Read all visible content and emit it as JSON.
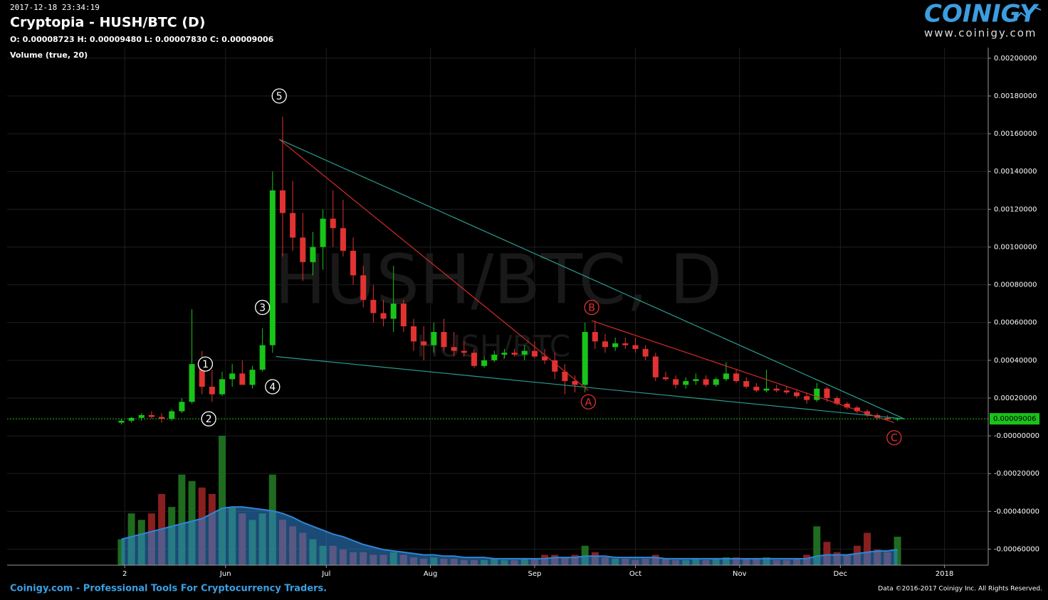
{
  "chart_data": {
    "type": "candlestick",
    "timestamp": "2017-12-18 23:34:19",
    "title": "Cryptopia - HUSH/BTC (D)",
    "ohlc_label": "O: 0.00008723 H: 0.00009480 L: 0.00007830 C: 0.00009006",
    "indicator_label": "Volume (true, 20)",
    "watermark": "HUSH/BTC, D",
    "watermark_small": "HUSH/BTC",
    "x": [
      "2017-05-01",
      "2017-05-04",
      "2017-05-07",
      "2017-05-10",
      "2017-05-13",
      "2017-05-16",
      "2017-05-19",
      "2017-05-22",
      "2017-05-25",
      "2017-05-28",
      "2017-05-31",
      "2017-06-03",
      "2017-06-06",
      "2017-06-09",
      "2017-06-12",
      "2017-06-15",
      "2017-06-18",
      "2017-06-21",
      "2017-06-24",
      "2017-06-27",
      "2017-06-30",
      "2017-07-03",
      "2017-07-06",
      "2017-07-09",
      "2017-07-12",
      "2017-07-15",
      "2017-07-18",
      "2017-07-21",
      "2017-07-24",
      "2017-07-27",
      "2017-07-30",
      "2017-08-02",
      "2017-08-05",
      "2017-08-08",
      "2017-08-11",
      "2017-08-14",
      "2017-08-17",
      "2017-08-20",
      "2017-08-23",
      "2017-08-26",
      "2017-08-29",
      "2017-09-01",
      "2017-09-04",
      "2017-09-07",
      "2017-09-10",
      "2017-09-13",
      "2017-09-16",
      "2017-09-19",
      "2017-09-22",
      "2017-09-25",
      "2017-09-28",
      "2017-10-01",
      "2017-10-04",
      "2017-10-07",
      "2017-10-10",
      "2017-10-13",
      "2017-10-16",
      "2017-10-19",
      "2017-10-22",
      "2017-10-25",
      "2017-10-28",
      "2017-10-31",
      "2017-11-03",
      "2017-11-06",
      "2017-11-09",
      "2017-11-12",
      "2017-11-15",
      "2017-11-18",
      "2017-11-21",
      "2017-11-24",
      "2017-11-27",
      "2017-11-30",
      "2017-12-03",
      "2017-12-06",
      "2017-12-09",
      "2017-12-12",
      "2017-12-15",
      "2017-12-18"
    ],
    "open": [
      7e-05,
      8e-05,
      9.5e-05,
      0.00011,
      0.0001,
      9e-05,
      0.00013,
      0.00018,
      0.00038,
      0.00026,
      0.00022,
      0.0003,
      0.00033,
      0.00027,
      0.00035,
      0.00048,
      0.0013,
      0.00118,
      0.00105,
      0.00092,
      0.001,
      0.00115,
      0.0011,
      0.00098,
      0.00085,
      0.00072,
      0.00065,
      0.00062,
      0.0007,
      0.00058,
      0.0005,
      0.00048,
      0.00055,
      0.00047,
      0.00045,
      0.00044,
      0.00037,
      0.0004,
      0.00043,
      0.00044,
      0.00043,
      0.00045,
      0.00042,
      0.0004,
      0.00034,
      0.00029,
      0.00027,
      0.00055,
      0.0005,
      0.00047,
      0.00049,
      0.00048,
      0.00046,
      0.00042,
      0.00031,
      0.0003,
      0.00027,
      0.00029,
      0.0003,
      0.00027,
      0.0003,
      0.00033,
      0.00029,
      0.00026,
      0.00024,
      0.00025,
      0.00024,
      0.00023,
      0.00021,
      0.00019,
      0.00025,
      0.0002,
      0.00017,
      0.00015,
      0.00013,
      0.00011,
      9.5e-05,
      8.723e-05
    ],
    "high": [
      9e-05,
      0.0001,
      0.00012,
      0.00013,
      0.00012,
      0.00014,
      0.0002,
      0.00067,
      0.00045,
      0.00035,
      0.00034,
      0.00038,
      0.0004,
      0.00037,
      0.00057,
      0.0014,
      0.00169,
      0.00135,
      0.00118,
      0.00108,
      0.0012,
      0.0013,
      0.00125,
      0.00105,
      0.0009,
      0.0008,
      0.00072,
      0.0009,
      0.00072,
      0.00062,
      0.00058,
      0.0006,
      0.00062,
      0.00055,
      0.0005,
      0.00046,
      0.00042,
      0.00045,
      0.00046,
      0.00046,
      0.00048,
      0.0005,
      0.00046,
      0.00044,
      0.00038,
      0.00032,
      0.0006,
      0.00061,
      0.00054,
      0.00052,
      0.00052,
      0.00052,
      0.00048,
      0.00044,
      0.00034,
      0.00032,
      0.00031,
      0.00033,
      0.00032,
      0.00031,
      0.00039,
      0.00035,
      0.00031,
      0.00028,
      0.00035,
      0.00027,
      0.00026,
      0.00024,
      0.00023,
      0.00028,
      0.00026,
      0.00021,
      0.00018,
      0.00016,
      0.00014,
      0.00012,
      0.00011,
      9.48e-05
    ],
    "low": [
      6e-05,
      7e-05,
      8e-05,
      9e-05,
      7e-05,
      8e-05,
      0.00012,
      0.00017,
      0.00022,
      0.00018,
      0.00021,
      0.00026,
      0.00028,
      0.00025,
      0.00034,
      0.00044,
      0.00095,
      0.00098,
      0.00082,
      0.00085,
      0.00088,
      0.001,
      0.00095,
      0.0008,
      0.00068,
      0.0006,
      0.00058,
      0.00055,
      0.00055,
      0.00045,
      0.0004,
      0.00044,
      0.00045,
      0.00042,
      0.00042,
      0.00036,
      0.00036,
      0.00039,
      0.00041,
      0.00042,
      0.0004,
      0.00041,
      0.00038,
      0.0003,
      0.00022,
      0.00023,
      0.00023,
      0.00046,
      0.00044,
      0.00045,
      0.00046,
      0.00044,
      0.0004,
      0.00029,
      0.00029,
      0.00025,
      0.00025,
      0.00027,
      0.00026,
      0.00026,
      0.00029,
      0.00028,
      0.00025,
      0.00023,
      0.00023,
      0.00023,
      0.00022,
      0.0002,
      0.00017,
      0.00018,
      0.00018,
      0.00016,
      0.00014,
      0.00012,
      0.0001,
      8.5e-05,
      8e-05,
      7.83e-05
    ],
    "close": [
      8e-05,
      9.5e-05,
      0.00011,
      0.0001,
      9e-05,
      0.00013,
      0.00018,
      0.00038,
      0.00026,
      0.00022,
      0.0003,
      0.00033,
      0.00027,
      0.00035,
      0.00048,
      0.0013,
      0.00118,
      0.00105,
      0.00092,
      0.001,
      0.00115,
      0.0011,
      0.00098,
      0.00085,
      0.00072,
      0.00065,
      0.00062,
      0.0007,
      0.00058,
      0.0005,
      0.00048,
      0.00055,
      0.00047,
      0.00045,
      0.00044,
      0.00037,
      0.0004,
      0.00043,
      0.00044,
      0.00043,
      0.00045,
      0.00042,
      0.0004,
      0.00034,
      0.00029,
      0.00027,
      0.00055,
      0.0005,
      0.00047,
      0.00049,
      0.00048,
      0.00046,
      0.00042,
      0.00031,
      0.0003,
      0.00027,
      0.00029,
      0.0003,
      0.00027,
      0.0003,
      0.00033,
      0.00029,
      0.00026,
      0.00024,
      0.00025,
      0.00024,
      0.00023,
      0.00021,
      0.00019,
      0.00025,
      0.0002,
      0.00017,
      0.00015,
      0.00013,
      0.00011,
      9.5e-05,
      8.7e-05,
      9.006e-05
    ],
    "up_color": "#19c419",
    "down_color": "#e23232",
    "volume": {
      "values": [
        20,
        40,
        35,
        40,
        55,
        45,
        70,
        65,
        60,
        55,
        100,
        45,
        40,
        35,
        40,
        70,
        35,
        30,
        25,
        20,
        15,
        15,
        12,
        10,
        10,
        8,
        8,
        10,
        8,
        6,
        5,
        6,
        5,
        5,
        4,
        4,
        4,
        5,
        4,
        4,
        5,
        5,
        8,
        8,
        6,
        8,
        15,
        10,
        6,
        5,
        5,
        4,
        5,
        8,
        5,
        4,
        4,
        5,
        4,
        5,
        6,
        6,
        5,
        5,
        6,
        4,
        4,
        5,
        8,
        30,
        18,
        10,
        8,
        15,
        25,
        12,
        10,
        22
      ],
      "up_color": "#1f6b1f",
      "down_color": "#8a1f1f",
      "ma": {
        "values": [
          20,
          22,
          24,
          26,
          28,
          30,
          32,
          34,
          36,
          40,
          44,
          45,
          45,
          44,
          43,
          42,
          40,
          37,
          33,
          30,
          27,
          24,
          22,
          19,
          16,
          14,
          12,
          11,
          10,
          9,
          8,
          8,
          7,
          7,
          6,
          6,
          6,
          5,
          5,
          5,
          5,
          5,
          5,
          6,
          6,
          6,
          7,
          7,
          7,
          6,
          6,
          6,
          6,
          6,
          5,
          5,
          5,
          5,
          5,
          5,
          5,
          5,
          5,
          5,
          5,
          5,
          5,
          5,
          5,
          7,
          8,
          8,
          8,
          9,
          10,
          11,
          11,
          12
        ],
        "color": "#2f86d6"
      }
    },
    "y2lim": [
      0,
      400
    ],
    "xlim": [
      "2017-03-28",
      "2018-01-14"
    ],
    "xticks": [
      {
        "value": "2017-05-02",
        "label": "2"
      },
      {
        "value": "2017-06-01",
        "label": "Jun"
      },
      {
        "value": "2017-07-01",
        "label": "Jul"
      },
      {
        "value": "2017-08-01",
        "label": "Aug"
      },
      {
        "value": "2017-09-01",
        "label": "Sep"
      },
      {
        "value": "2017-10-01",
        "label": "Oct"
      },
      {
        "value": "2017-11-01",
        "label": "Nov"
      },
      {
        "value": "2017-12-01",
        "label": "Dec"
      },
      {
        "value": "2018-01-01",
        "label": "2018"
      }
    ],
    "ylim": [
      -0.000685,
      0.002056
    ],
    "yticks": [
      {
        "value": 0.002,
        "label": "0.00200000"
      },
      {
        "value": 0.0018,
        "label": "0.00180000"
      },
      {
        "value": 0.0016,
        "label": "0.00160000"
      },
      {
        "value": 0.0014,
        "label": "0.00140000"
      },
      {
        "value": 0.0012,
        "label": "0.00120000"
      },
      {
        "value": 0.001,
        "label": "0.00100000"
      },
      {
        "value": 0.0008,
        "label": "0.00080000"
      },
      {
        "value": 0.0006,
        "label": "0.00060000"
      },
      {
        "value": 0.0004,
        "label": "0.00040000"
      },
      {
        "value": 0.0002,
        "label": "0.00020000"
      },
      {
        "value": 0,
        "label": "-0.00000000"
      },
      {
        "value": -0.0002,
        "label": "-0.00020000"
      },
      {
        "value": -0.0004,
        "label": "-0.00040000"
      },
      {
        "value": -0.0006,
        "label": "-0.00060000"
      }
    ],
    "grid": true,
    "last_price_color": "#19c419",
    "annotations": [
      {
        "text": "1",
        "x": "2017-05-26",
        "y": 0.00038,
        "color": "#ffffff"
      },
      {
        "text": "2",
        "x": "2017-05-27",
        "y": 9e-05,
        "color": "#ffffff"
      },
      {
        "text": "3",
        "x": "2017-06-12",
        "y": 0.00068,
        "color": "#ffffff"
      },
      {
        "text": "4",
        "x": "2017-06-15",
        "y": 0.00026,
        "color": "#ffffff"
      },
      {
        "text": "5",
        "x": "2017-06-17",
        "y": 0.0018,
        "color": "#ffffff"
      },
      {
        "text": "A",
        "x": "2017-09-17",
        "y": 0.00018,
        "color": "#e23232"
      },
      {
        "text": "B",
        "x": "2017-09-18",
        "y": 0.00068,
        "color": "#e23232"
      },
      {
        "text": "C",
        "x": "2017-12-17",
        "y": -1e-05,
        "color": "#e23232"
      }
    ],
    "trendlines": [
      {
        "color": "#2a9d8f",
        "points": [
          [
            "2017-06-17",
            0.00157
          ],
          [
            "2017-12-20",
            9e-05
          ]
        ]
      },
      {
        "color": "#2a9d8f",
        "points": [
          [
            "2017-06-16",
            0.00042
          ],
          [
            "2017-12-20",
            9e-05
          ]
        ]
      },
      {
        "color": "#d42a2a",
        "points": [
          [
            "2017-06-17",
            0.00157
          ],
          [
            "2017-09-17",
            0.00024
          ]
        ]
      },
      {
        "color": "#d42a2a",
        "points": [
          [
            "2017-09-18",
            0.00061
          ],
          [
            "2017-12-17",
            7e-05
          ]
        ]
      }
    ]
  },
  "footer": {
    "left": "Coinigy.com - Professional Tools For Cryptocurrency Traders.",
    "right": "Data ©2016-2017 Coinigy Inc. All Rights Reserved."
  },
  "logo": {
    "name": "COINIGY",
    "url": "www.coinigy.com"
  }
}
